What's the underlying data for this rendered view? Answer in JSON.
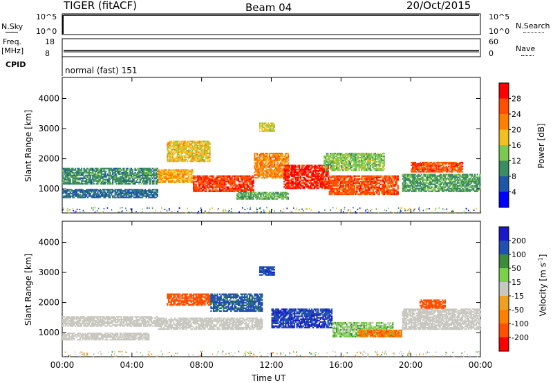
{
  "header": {
    "radar": "TIGER (fitACF)",
    "beam": "Beam 04",
    "date": "20/Oct/2015"
  },
  "strips": {
    "nsky_label": "N.Sky",
    "nsearch_label": "N.Search",
    "nsky_ticks": [
      "10^5",
      "10^0"
    ],
    "nsearch_ticks": [
      "10^5",
      "10^0"
    ],
    "freq_label": "Freq.",
    "freq_unit": "[MHz]",
    "freq_ticks": [
      "18",
      "8"
    ],
    "nave_label": "Nave",
    "nave_ticks": [
      "60",
      "0"
    ],
    "cpid_label": "CPID",
    "cpid_value": "normal (fast) 151"
  },
  "colors": {
    "power_scale": [
      "#0000ff",
      "#1f57a8",
      "#3c8c62",
      "#7cc850",
      "#f0c020",
      "#ff8000",
      "#ff5000",
      "#ff0000"
    ],
    "velocity_scale": [
      "#1a1acc",
      "#2050b0",
      "#3c8c3c",
      "#7ad048",
      "#c8c8c0",
      "#f0a020",
      "#ff8000",
      "#ff5000",
      "#ff0000"
    ],
    "ground_scatter": "#c8c8c0"
  },
  "chart_data": [
    {
      "type": "heatmap",
      "panel": "power",
      "xlabel": "",
      "ylabel": "Slant Range [km]",
      "x_tick_labels": [
        "00:00",
        "04:00",
        "08:00",
        "12:00",
        "16:00",
        "20:00",
        "00:00"
      ],
      "y_tick_labels": [
        "1000",
        "2000",
        "3000",
        "4000"
      ],
      "xlim": [
        0,
        24
      ],
      "ylim": [
        200,
        4700
      ],
      "colorbar": {
        "label": "Power [dB]",
        "ticks": [
          "4",
          "8",
          "12",
          "16",
          "20",
          "24",
          "28"
        ],
        "range": [
          0,
          32
        ]
      },
      "echo_regions": [
        {
          "t0": 0,
          "t1": 5.5,
          "r0": 1150,
          "r1": 1700,
          "v": 10
        },
        {
          "t0": 0,
          "t1": 5.5,
          "r0": 700,
          "r1": 1000,
          "v": 7
        },
        {
          "t0": 5.5,
          "t1": 7.5,
          "r0": 1200,
          "r1": 1650,
          "v": 20
        },
        {
          "t0": 7.5,
          "t1": 11,
          "r0": 900,
          "r1": 1450,
          "v": 27
        },
        {
          "t0": 6,
          "t1": 8.5,
          "r0": 1900,
          "r1": 2600,
          "v": 18
        },
        {
          "t0": 11,
          "t1": 13,
          "r0": 1350,
          "r1": 2200,
          "v": 22
        },
        {
          "t0": 12.7,
          "t1": 15.3,
          "r0": 1000,
          "r1": 1800,
          "v": 29
        },
        {
          "t0": 15.3,
          "t1": 19.3,
          "r0": 800,
          "r1": 1450,
          "v": 26
        },
        {
          "t0": 10,
          "t1": 13,
          "r0": 650,
          "r1": 900,
          "v": 12
        },
        {
          "t0": 15,
          "t1": 18.5,
          "r0": 1600,
          "r1": 2200,
          "v": 14
        },
        {
          "t0": 20,
          "t1": 23,
          "r0": 1550,
          "r1": 1900,
          "v": 26
        },
        {
          "t0": 19.5,
          "t1": 24,
          "r0": 900,
          "r1": 1500,
          "v": 11
        },
        {
          "t0": 11.3,
          "t1": 12.2,
          "r0": 2900,
          "r1": 3200,
          "v": 17
        }
      ]
    },
    {
      "type": "heatmap",
      "panel": "velocity",
      "xlabel": "Time UT",
      "ylabel": "Slant Range [km]",
      "x_tick_labels": [
        "00:00",
        "04:00",
        "08:00",
        "12:00",
        "16:00",
        "20:00",
        "00:00"
      ],
      "y_tick_labels": [
        "1000",
        "2000",
        "3000",
        "4000"
      ],
      "xlim": [
        0,
        24
      ],
      "ylim": [
        200,
        4700
      ],
      "colorbar": {
        "label": "Velocity [m s^-1]",
        "ticks": [
          "200",
          "100",
          "50",
          "15",
          "-15",
          "-50",
          "-100",
          "-200"
        ],
        "range": [
          -250,
          250
        ]
      },
      "echo_regions": [
        {
          "t0": 0,
          "t1": 5.5,
          "r0": 1200,
          "r1": 1550,
          "v": 0,
          "gs": true
        },
        {
          "t0": 0,
          "t1": 5,
          "r0": 750,
          "r1": 1000,
          "v": 0,
          "gs": true
        },
        {
          "t0": 5.5,
          "t1": 11.5,
          "r0": 1100,
          "r1": 1500,
          "v": 0,
          "gs": true
        },
        {
          "t0": 6,
          "t1": 8.5,
          "r0": 1900,
          "r1": 2300,
          "v": -160
        },
        {
          "t0": 8.5,
          "t1": 11.5,
          "r0": 1700,
          "r1": 2300,
          "v": 120
        },
        {
          "t0": 12,
          "t1": 15.5,
          "r0": 1150,
          "r1": 1800,
          "v": 190
        },
        {
          "t0": 15.5,
          "t1": 19,
          "r0": 850,
          "r1": 1350,
          "v": 30
        },
        {
          "t0": 17,
          "t1": 19.5,
          "r0": 850,
          "r1": 1100,
          "v": -90
        },
        {
          "t0": 19.5,
          "t1": 24,
          "r0": 1100,
          "r1": 1800,
          "v": 0,
          "gs": true
        },
        {
          "t0": 20.5,
          "t1": 22,
          "r0": 1800,
          "r1": 2100,
          "v": -140
        },
        {
          "t0": 11.3,
          "t1": 12.2,
          "r0": 2900,
          "r1": 3200,
          "v": 180
        }
      ]
    }
  ],
  "xlabel": "Time UT"
}
